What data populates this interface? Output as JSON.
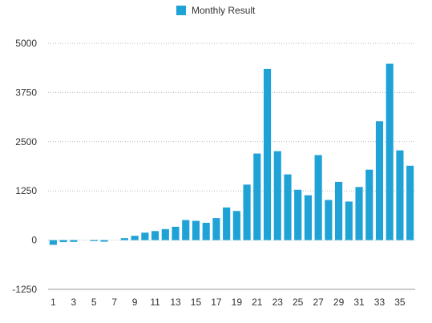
{
  "chart_data": {
    "type": "bar",
    "title": "",
    "xlabel": "",
    "ylabel": "",
    "legend": {
      "position": "top-center",
      "entries": [
        {
          "name": "Monthly Result",
          "color": "#1fa3d6"
        }
      ]
    },
    "categories": [
      "1",
      "2",
      "3",
      "4",
      "5",
      "6",
      "7",
      "8",
      "9",
      "10",
      "11",
      "12",
      "13",
      "14",
      "15",
      "16",
      "17",
      "18",
      "19",
      "20",
      "21",
      "22",
      "23",
      "24",
      "25",
      "26",
      "27",
      "28",
      "29",
      "30",
      "31",
      "32",
      "33",
      "34",
      "35",
      "36"
    ],
    "x_tick_labels": [
      "1",
      "3",
      "5",
      "7",
      "9",
      "11",
      "13",
      "15",
      "17",
      "19",
      "21",
      "23",
      "25",
      "27",
      "29",
      "31",
      "33",
      "35"
    ],
    "series": [
      {
        "name": "Monthly Result",
        "color": "#1fa3d6",
        "values": [
          -120,
          -50,
          -45,
          0,
          -25,
          -40,
          0,
          50,
          110,
          190,
          230,
          280,
          340,
          510,
          490,
          440,
          560,
          830,
          740,
          1410,
          2200,
          4350,
          2260,
          1670,
          1280,
          1140,
          2160,
          1020,
          1480,
          980,
          1350,
          1790,
          3020,
          4480,
          2280,
          1890
        ]
      }
    ],
    "y_ticks": [
      -1250,
      0,
      1250,
      2500,
      3750,
      5000
    ],
    "y_tick_labels": [
      "-1250",
      "0",
      "1250",
      "2500",
      "3750",
      "5000"
    ],
    "ylim": [
      -1250,
      5000
    ],
    "grid": true
  }
}
